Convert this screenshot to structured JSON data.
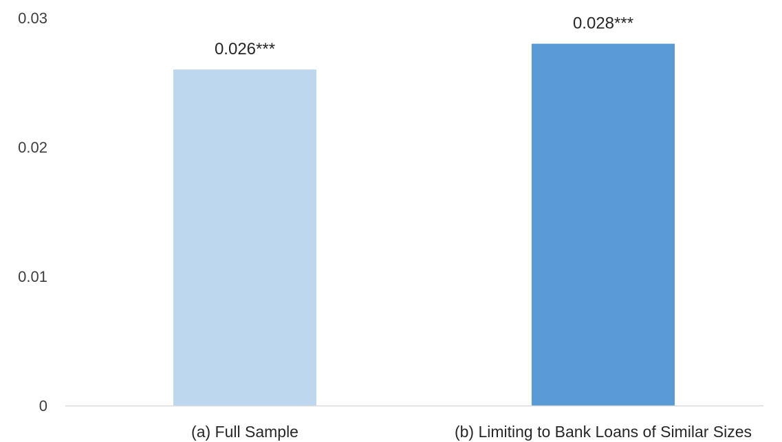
{
  "chart_data": {
    "type": "bar",
    "title": "",
    "xlabel": "",
    "ylabel": "",
    "ylim": [
      0,
      0.03
    ],
    "yticks": [
      "0",
      "0.01",
      "0.02",
      "0.03"
    ],
    "grid": false,
    "legend": "none",
    "categories": [
      "(a) Full Sample",
      "(b) Limiting to Bank Loans of Similar Sizes"
    ],
    "values": [
      0.026,
      0.028
    ],
    "data_labels": [
      "0.026***",
      "0.028***"
    ],
    "colors": [
      "#bdd7ee",
      "#5b9bd5"
    ],
    "axis_color": "#d9d9d9"
  }
}
